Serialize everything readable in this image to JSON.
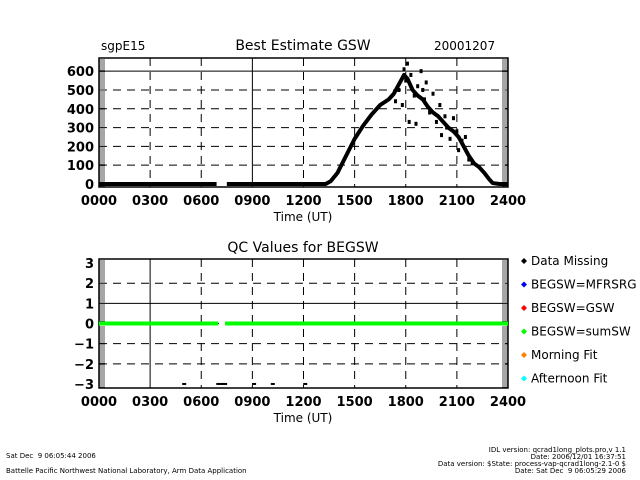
{
  "header": {
    "site": "sgpE15",
    "date": "20001207"
  },
  "footer": {
    "left_line1": "Sat Dec  9 06:05:44 2006",
    "left_line2": "Battelle Pacific Northwest National Laboratory, Arm Data Application",
    "right_line1": "IDL version: qcrad1long_plots.pro,v 1.1",
    "right_line2": "Date: 2006/12/01 16:37:51",
    "right_line3": "Data version: $State: process-vap-qcrad1long-2.1-0 $",
    "right_line4": "Date: Sat Dec  9 06:05:29 2006"
  },
  "chart_data": [
    {
      "type": "scatter",
      "title": "Best Estimate GSW",
      "xlabel": "Time (UT)",
      "ylabel": "",
      "xlim": [
        0,
        2400
      ],
      "ylim": [
        -16,
        670
      ],
      "x_ticks": [
        "0000",
        "0300",
        "0600",
        "0900",
        "1200",
        "1500",
        "1800",
        "2100",
        "2400"
      ],
      "y_ticks": [
        "0",
        "100",
        "200",
        "300",
        "400",
        "500",
        "600"
      ],
      "y_tick_values": [
        0,
        100,
        200,
        300,
        400,
        500,
        600
      ],
      "grid": true,
      "color": "#000000",
      "missing_interval_hours": [
        7.0,
        7.4
      ],
      "series": [
        {
          "name": "BEGSW",
          "hours": [
            0,
            6.9,
            7.5,
            13.3,
            13.6,
            14.0,
            14.5,
            15.0,
            15.5,
            16.0,
            16.5,
            17.0,
            17.3,
            17.6,
            17.9,
            18.1,
            18.4,
            18.7,
            19.0,
            19.3,
            19.6,
            19.9,
            20.2,
            20.5,
            20.8,
            21.1,
            21.4,
            21.7,
            22.0,
            22.3,
            22.6,
            22.9,
            23.1,
            23.5,
            24.0
          ],
          "values": [
            0,
            0,
            0,
            0,
            15,
            60,
            150,
            240,
            310,
            370,
            420,
            450,
            480,
            530,
            580,
            560,
            500,
            470,
            450,
            410,
            380,
            360,
            330,
            300,
            280,
            250,
            200,
            150,
            110,
            90,
            60,
            25,
            5,
            0,
            0
          ]
        },
        {
          "name": "BEGSW-scatter",
          "hours": [
            17.6,
            17.9,
            18.0,
            18.1,
            18.3,
            18.5,
            18.7,
            18.9,
            19.1,
            19.2,
            19.4,
            19.6,
            19.8,
            20.0,
            20.1,
            20.3,
            20.4,
            20.6,
            20.8,
            21.0,
            21.1,
            21.3,
            21.5,
            21.7,
            21.9,
            17.4,
            17.8,
            18.2,
            18.6,
            19.0
          ],
          "values": [
            500,
            610,
            550,
            640,
            580,
            470,
            520,
            600,
            450,
            540,
            380,
            480,
            330,
            420,
            260,
            360,
            300,
            240,
            350,
            280,
            180,
            230,
            250,
            130,
            110,
            440,
            420,
            330,
            320,
            500
          ]
        }
      ]
    },
    {
      "type": "scatter",
      "title": "QC Values for BEGSW",
      "xlabel": "Time (UT)",
      "ylabel": "",
      "xlim": [
        0,
        2400
      ],
      "ylim": [
        -3.2,
        3.2
      ],
      "x_ticks": [
        "0000",
        "0300",
        "0600",
        "0900",
        "1200",
        "1500",
        "1800",
        "2100",
        "2400"
      ],
      "y_ticks": [
        "3",
        "2",
        "1",
        "0",
        "−1",
        "−2",
        "−3"
      ],
      "y_tick_values": [
        3,
        2,
        1,
        0,
        -1,
        -2,
        -3
      ],
      "grid": true,
      "legend_position": "right",
      "legend": [
        {
          "label": "Data Missing",
          "color": "#000000"
        },
        {
          "label": "BEGSW=MFRSRG",
          "color": "#0000ff"
        },
        {
          "label": "BEGSW=GSW",
          "color": "#ff0000"
        },
        {
          "label": "BEGSW=sumSW",
          "color": "#00ff00"
        },
        {
          "label": "Morning Fit",
          "color": "#ff8000"
        },
        {
          "label": "Afternoon Fit",
          "color": "#00ffff"
        }
      ],
      "series": [
        {
          "name": "BEGSW=sumSW",
          "value": 0,
          "segments_hours": [
            [
              0,
              7.0
            ],
            [
              7.4,
              24.0
            ]
          ],
          "color": "#00ff00"
        },
        {
          "name": "Data Missing",
          "value": -3,
          "hours": [
            5.0,
            7.0,
            7.2,
            7.4,
            9.1,
            10.2,
            12.1
          ],
          "color": "#000000"
        }
      ]
    }
  ]
}
